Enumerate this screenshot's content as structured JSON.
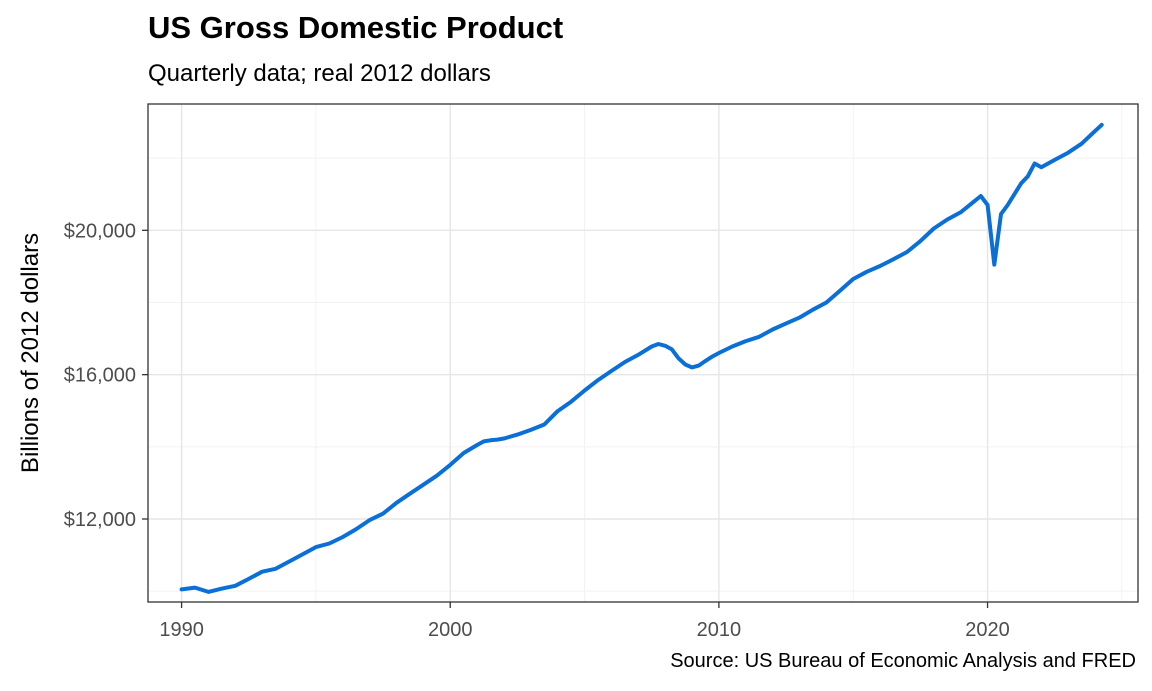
{
  "chart_data": {
    "type": "line",
    "title": "US Gross Domestic Product",
    "subtitle": "Quarterly data; real 2012 dollars",
    "ylabel": "Billions of 2012 dollars",
    "xlabel": "",
    "caption": "Source: US Bureau of Economic Analysis and FRED",
    "xlim": [
      1988.75,
      2025.6
    ],
    "ylim": [
      9700,
      23500
    ],
    "x_ticks": [
      1990,
      2000,
      2010,
      2020
    ],
    "x_tick_labels": [
      "1990",
      "2000",
      "2010",
      "2020"
    ],
    "y_ticks": [
      12000,
      16000,
      20000
    ],
    "y_tick_labels": [
      "$12,000",
      "$16,000",
      "$20,000"
    ],
    "y_minor_ticks": [
      10000,
      14000,
      18000,
      22000
    ],
    "x_minor_ticks": [
      1995,
      2005,
      2015,
      2025
    ],
    "grid": true,
    "series": [
      {
        "color": "#0a6fd6",
        "x": [
          1990.0,
          1990.5,
          1991.0,
          1991.5,
          1992.0,
          1992.5,
          1993.0,
          1993.5,
          1994.0,
          1994.5,
          1995.0,
          1995.5,
          1996.0,
          1996.5,
          1997.0,
          1997.5,
          1998.0,
          1998.5,
          1999.0,
          1999.5,
          2000.0,
          2000.5,
          2001.0,
          2001.25,
          2001.5,
          2001.75,
          2002.0,
          2002.5,
          2003.0,
          2003.5,
          2004.0,
          2004.5,
          2005.0,
          2005.5,
          2006.0,
          2006.5,
          2007.0,
          2007.5,
          2007.75,
          2008.0,
          2008.25,
          2008.5,
          2008.75,
          2009.0,
          2009.25,
          2009.5,
          2009.75,
          2010.0,
          2010.5,
          2011.0,
          2011.5,
          2012.0,
          2012.5,
          2013.0,
          2013.5,
          2014.0,
          2014.5,
          2015.0,
          2015.5,
          2016.0,
          2016.5,
          2017.0,
          2017.5,
          2018.0,
          2018.5,
          2019.0,
          2019.5,
          2019.75,
          2020.0,
          2020.25,
          2020.5,
          2020.75,
          2021.0,
          2021.25,
          2021.5,
          2021.75,
          2022.0,
          2022.5,
          2023.0,
          2023.5,
          2024.0,
          2024.25
        ],
        "y": [
          10050,
          10100,
          9980,
          10070,
          10150,
          10340,
          10540,
          10620,
          10820,
          11020,
          11220,
          11320,
          11500,
          11720,
          11970,
          12150,
          12450,
          12700,
          12950,
          13200,
          13500,
          13830,
          14050,
          14150,
          14180,
          14200,
          14230,
          14340,
          14470,
          14620,
          14990,
          15250,
          15560,
          15850,
          16100,
          16350,
          16550,
          16780,
          16850,
          16800,
          16700,
          16450,
          16280,
          16200,
          16250,
          16380,
          16500,
          16600,
          16780,
          16930,
          17050,
          17250,
          17420,
          17580,
          17800,
          18000,
          18320,
          18650,
          18850,
          19010,
          19200,
          19400,
          19700,
          20050,
          20300,
          20500,
          20800,
          20950,
          20700,
          19050,
          20450,
          20700,
          21000,
          21300,
          21500,
          21850,
          21750,
          21950,
          22150,
          22400,
          22750,
          22920
        ]
      }
    ]
  }
}
